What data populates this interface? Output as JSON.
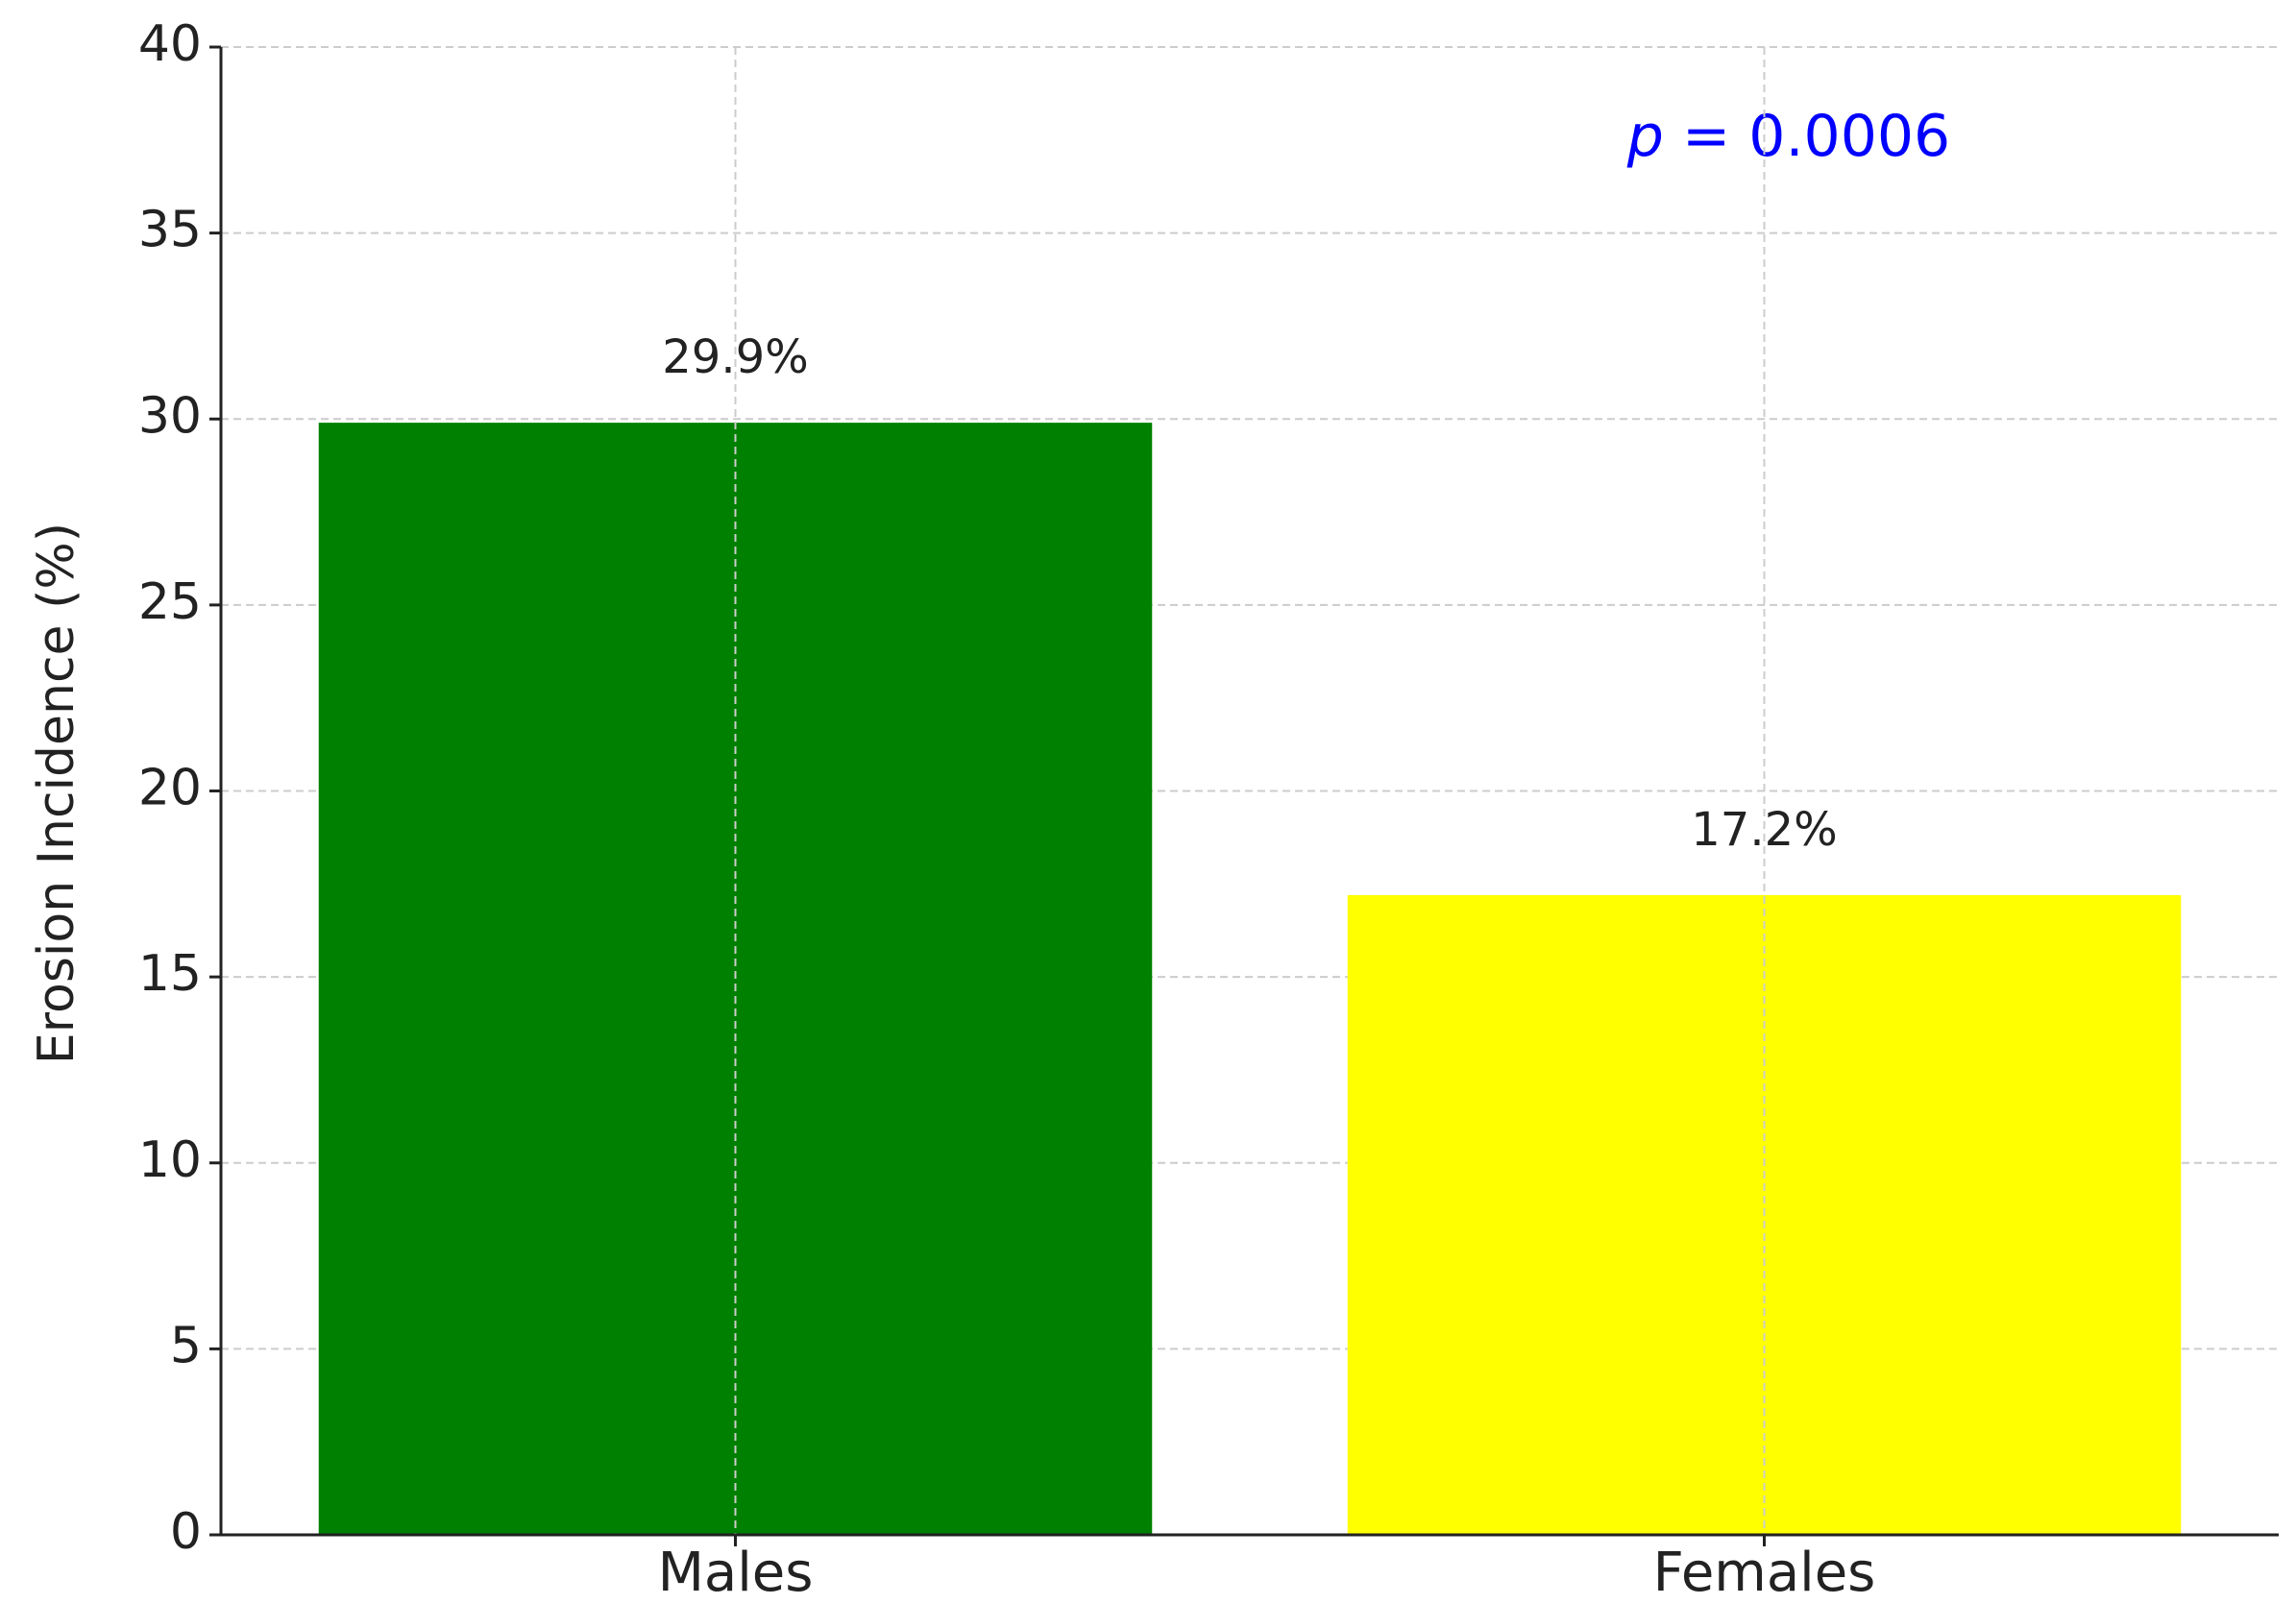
{
  "chart_data": {
    "type": "bar",
    "ylabel": "Erosion Incidence (%)",
    "categories": [
      "Males",
      "Females"
    ],
    "values": [
      29.9,
      17.2
    ],
    "value_labels": [
      "29.9%",
      "17.2%"
    ],
    "colors": [
      "#008000",
      "#ffff00"
    ],
    "ylim": [
      0,
      40
    ],
    "yticks": [
      0,
      5,
      10,
      15,
      20,
      25,
      30,
      35,
      40
    ],
    "grid": true,
    "annotation": {
      "symbol": "p",
      "text": "= 0.0006",
      "color": "#0000ff"
    }
  }
}
